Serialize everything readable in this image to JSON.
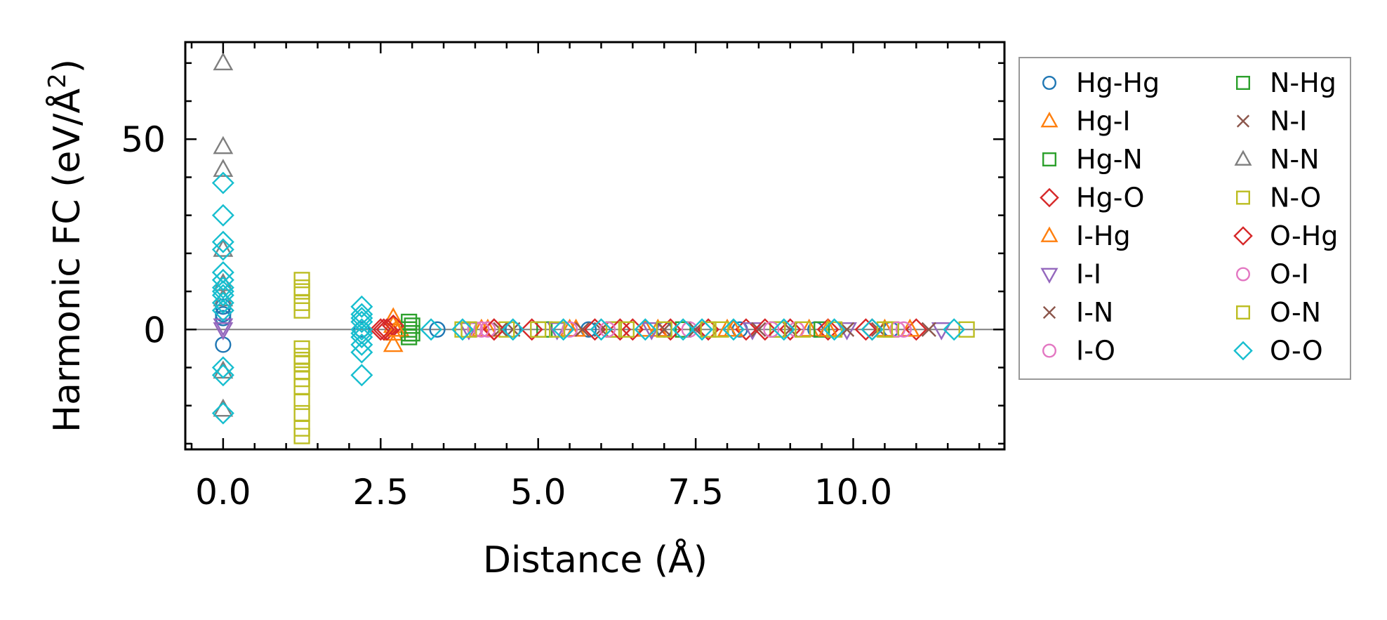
{
  "chart_data": {
    "type": "scatter",
    "title": "",
    "xlabel": "Distance (Å)",
    "ylabel_prefix": "Harmonic FC (eV/Å",
    "ylabel_sup": "2",
    "ylabel_suffix": ")",
    "xlim": [
      -0.6,
      12.4
    ],
    "ylim": [
      -31.5,
      75.5
    ],
    "xticks": [
      0.0,
      2.5,
      5.0,
      7.5,
      10.0
    ],
    "xtick_labels": [
      "0.0",
      "2.5",
      "5.0",
      "7.5",
      "10.0"
    ],
    "xticks_minor": [
      -0.5,
      0.5,
      1.0,
      1.5,
      2.0,
      3.0,
      3.5,
      4.0,
      4.5,
      5.5,
      6.0,
      6.5,
      7.0,
      8.0,
      8.5,
      9.0,
      9.5,
      10.5,
      11.0,
      11.5,
      12.0
    ],
    "yticks": [
      0,
      50
    ],
    "ytick_labels": [
      "0",
      "50"
    ],
    "yticks_minor": [
      -30,
      -20,
      -10,
      10,
      20,
      30,
      40,
      60,
      70
    ],
    "zero_line": true,
    "legend_position": "outside-right",
    "legend_columns": 2,
    "series": [
      {
        "name": "Hg-Hg",
        "color": "#1f77b4",
        "marker": "circle",
        "x": [
          0.0,
          0.0,
          0.0,
          0.0,
          2.2,
          3.4,
          4.6,
          5.8,
          7.0,
          8.2,
          9.4,
          10.6
        ],
        "y": [
          4,
          3,
          6,
          -4,
          0,
          0,
          0,
          0,
          0,
          0,
          0,
          0
        ]
      },
      {
        "name": "Hg-I",
        "color": "#ff7f0e",
        "marker": "triangle-up",
        "x": [
          2.7,
          2.7,
          2.7,
          2.7,
          2.8,
          4.2,
          5.5,
          6.7,
          8.0,
          9.3,
          10.5
        ],
        "y": [
          3,
          1,
          -1,
          -4,
          0,
          0,
          0,
          0,
          0,
          0,
          0
        ]
      },
      {
        "name": "Hg-N",
        "color": "#2ca02c",
        "marker": "square",
        "x": [
          2.95,
          2.95,
          2.95,
          2.95,
          5.1,
          7.3,
          9.5
        ],
        "y": [
          2,
          0,
          -1,
          -2,
          0,
          0,
          0
        ]
      },
      {
        "name": "Hg-O",
        "color": "#d62728",
        "marker": "diamond",
        "x": [
          2.5,
          2.6,
          2.7,
          4.3,
          4.9,
          5.9,
          6.5,
          7.1,
          7.7,
          8.3,
          9.0,
          9.6,
          10.2,
          11.0
        ],
        "y": [
          0,
          0,
          1,
          0,
          0,
          0,
          0,
          0,
          0,
          0,
          0,
          0,
          0,
          0
        ]
      },
      {
        "name": "I-Hg",
        "color": "#ff7f0e",
        "marker": "triangle-up",
        "x": [
          2.75,
          4.1,
          5.6,
          6.9,
          8.1,
          9.6,
          10.9
        ],
        "y": [
          0,
          0,
          0,
          0,
          0,
          0,
          0
        ]
      },
      {
        "name": "I-I",
        "color": "#9467bd",
        "marker": "triangle-down",
        "x": [
          0.0,
          0.0,
          3.9,
          5.3,
          6.8,
          8.4,
          9.9,
          11.4
        ],
        "y": [
          0,
          1,
          0,
          0,
          0,
          0,
          0,
          0
        ]
      },
      {
        "name": "I-N",
        "color": "#8c564b",
        "marker": "x",
        "x": [
          4.4,
          5.7,
          7.0,
          8.5,
          9.9,
          11.2
        ],
        "y": [
          0,
          0,
          0,
          0,
          0,
          0
        ]
      },
      {
        "name": "I-O",
        "color": "#e377c2",
        "marker": "circle",
        "x": [
          4.0,
          4.2,
          5.5,
          7.4,
          9.1,
          10.8
        ],
        "y": [
          0,
          0,
          0,
          0,
          0,
          0
        ]
      },
      {
        "name": "N-Hg",
        "color": "#2ca02c",
        "marker": "square",
        "x": [
          3.0,
          3.0,
          6.2,
          8.8
        ],
        "y": [
          1,
          -1,
          0,
          0
        ]
      },
      {
        "name": "N-I",
        "color": "#8c564b",
        "marker": "x",
        "x": [
          4.6,
          6.0,
          7.5,
          9.0,
          10.4
        ],
        "y": [
          0,
          0,
          0,
          0,
          0
        ]
      },
      {
        "name": "N-N",
        "color": "#7f7f7f",
        "marker": "triangle-up",
        "x": [
          0.0,
          0.0,
          0.0,
          0.0,
          0.0,
          0.0,
          0.0,
          0.0
        ],
        "y": [
          70,
          48,
          42,
          21,
          12,
          8,
          -11,
          -21
        ]
      },
      {
        "name": "N-O",
        "color": "#bcbd22",
        "marker": "square",
        "x": [
          3.8,
          4.5,
          5.3,
          6.2,
          7.0,
          7.9,
          8.8,
          9.7,
          10.6,
          11.8
        ],
        "y": [
          0,
          0,
          0,
          0,
          0,
          0,
          0,
          0,
          0,
          0
        ]
      },
      {
        "name": "O-Hg",
        "color": "#d62728",
        "marker": "diamond",
        "x": [
          2.55,
          4.3,
          6.3,
          8.6,
          10.3
        ],
        "y": [
          0,
          0,
          0,
          0,
          0
        ]
      },
      {
        "name": "O-I",
        "color": "#e377c2",
        "marker": "circle",
        "x": [
          4.1,
          6.1,
          8.7,
          10.7
        ],
        "y": [
          0,
          0,
          0,
          0
        ]
      },
      {
        "name": "O-N",
        "color": "#bcbd22",
        "marker": "square",
        "x": [
          1.25,
          1.25,
          1.25,
          1.25,
          1.25,
          1.25,
          1.25,
          1.25,
          1.25,
          1.25,
          1.25,
          1.25,
          1.25,
          1.25,
          1.25,
          1.25,
          3.9,
          5.0,
          6.4,
          7.7,
          9.2,
          10.5
        ],
        "y": [
          13,
          10,
          7,
          5,
          -5,
          -7,
          -9,
          -11,
          -13,
          -19,
          -22,
          -26,
          -28,
          -15,
          -8,
          11,
          0,
          0,
          0,
          0,
          0,
          0
        ]
      },
      {
        "name": "O-O",
        "color": "#17becf",
        "marker": "diamond",
        "x": [
          0.0,
          0.0,
          0.0,
          0.0,
          0.0,
          0.0,
          0.0,
          0.0,
          0.0,
          0.0,
          0.0,
          0.0,
          0.0,
          0.0,
          2.2,
          2.2,
          2.2,
          2.2,
          2.2,
          2.2,
          2.2,
          2.2,
          2.2,
          2.2,
          3.3,
          3.8,
          4.6,
          5.4,
          6.0,
          6.7,
          7.3,
          7.6,
          8.1,
          8.9,
          9.7,
          10.3,
          11.6
        ],
        "y": [
          38.5,
          30,
          23,
          15,
          13,
          11,
          9,
          7,
          5,
          -10,
          -12,
          -22,
          10,
          21,
          6,
          4,
          2,
          0,
          -2,
          -4,
          -6,
          -12,
          3,
          -1,
          0,
          0,
          0,
          0,
          0,
          0,
          0,
          0,
          0,
          0,
          0,
          0,
          0
        ]
      }
    ]
  }
}
